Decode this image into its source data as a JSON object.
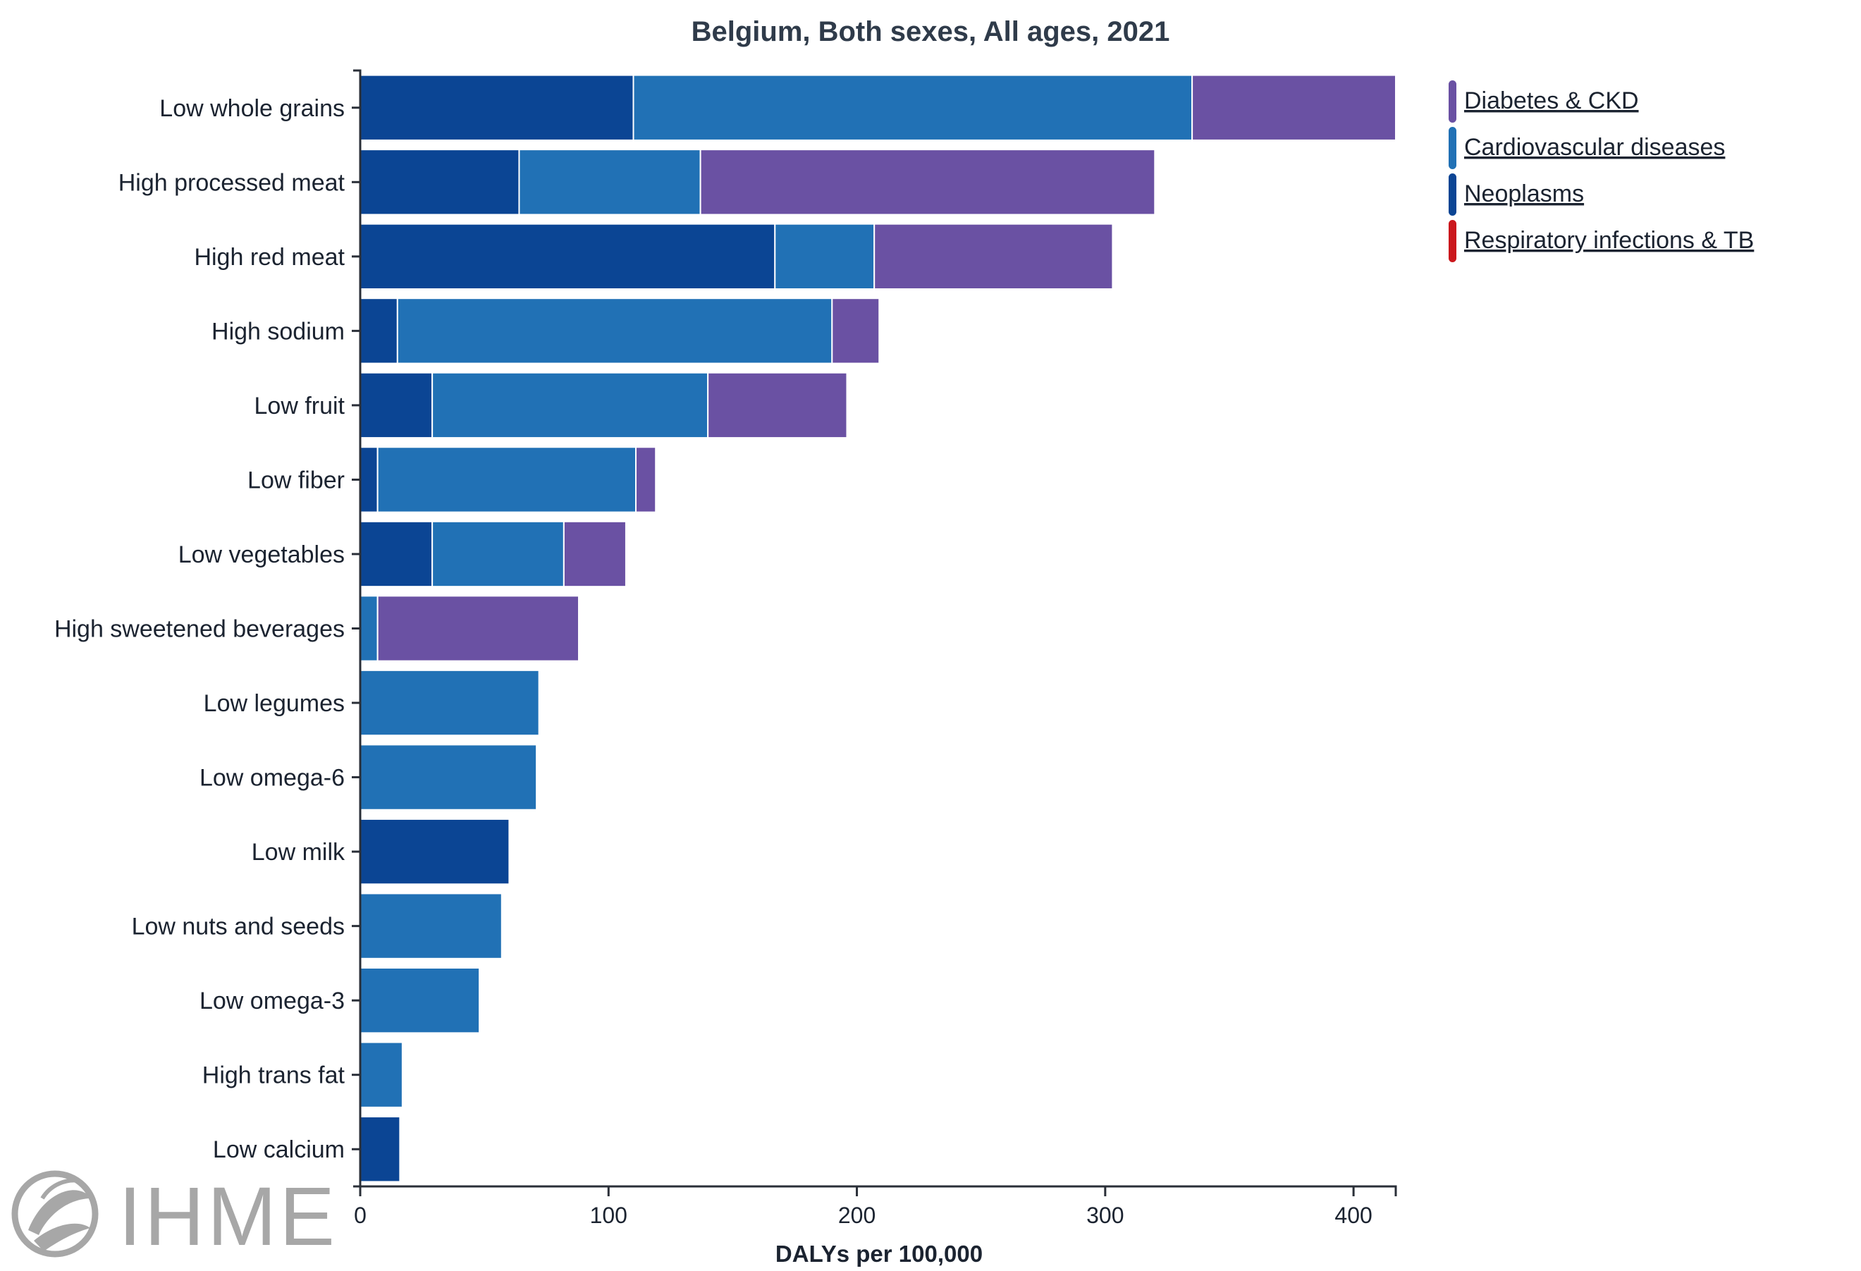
{
  "chart_data": {
    "type": "bar",
    "orientation": "horizontal",
    "stacked": true,
    "title": "Belgium, Both sexes, All ages, 2021",
    "xlabel": "DALYs per 100,000",
    "ylabel": "",
    "xlim": [
      0,
      417
    ],
    "xticks": [
      0,
      100,
      200,
      300,
      400
    ],
    "categories": [
      "Low whole grains",
      "High processed meat",
      "High red meat",
      "High sodium",
      "Low fruit",
      "Low fiber",
      "Low vegetables",
      "High sweetened beverages",
      "Low legumes",
      "Low omega-6",
      "Low milk",
      "Low nuts and seeds",
      "Low omega-3",
      "High trans fat",
      "Low calcium"
    ],
    "series": [
      {
        "name": "Neoplasms",
        "color": "#0b4594",
        "values": [
          110,
          64,
          167,
          15,
          29,
          7,
          29,
          0,
          0,
          0,
          60,
          0,
          0,
          0,
          16
        ]
      },
      {
        "name": "Cardiovascular diseases",
        "color": "#2171b5",
        "values": [
          225,
          73,
          40,
          175,
          111,
          104,
          53,
          7,
          72,
          71,
          0,
          57,
          48,
          17,
          0
        ]
      },
      {
        "name": "Diabetes & CKD",
        "color": "#6a51a3",
        "values": [
          82,
          183,
          96,
          19,
          56,
          8,
          25,
          81,
          0,
          0,
          0,
          0,
          0,
          0,
          0
        ]
      },
      {
        "name": "Respiratory infections & TB",
        "color": "#cb181d",
        "values": [
          0,
          0,
          0,
          0,
          0,
          0,
          0,
          0,
          0,
          0,
          0,
          0,
          0,
          0,
          0
        ]
      }
    ],
    "legend": {
      "position": "top-right",
      "items": [
        {
          "label": "Diabetes & CKD",
          "color": "#6a51a3"
        },
        {
          "label": "Cardiovascular diseases",
          "color": "#2171b5"
        },
        {
          "label": "Neoplasms",
          "color": "#0b4594"
        },
        {
          "label": "Respiratory infections & TB",
          "color": "#cb181d"
        }
      ]
    }
  },
  "branding": {
    "logo_text": "IHME",
    "logo_icon": "ihme-leaf-logo-icon"
  }
}
